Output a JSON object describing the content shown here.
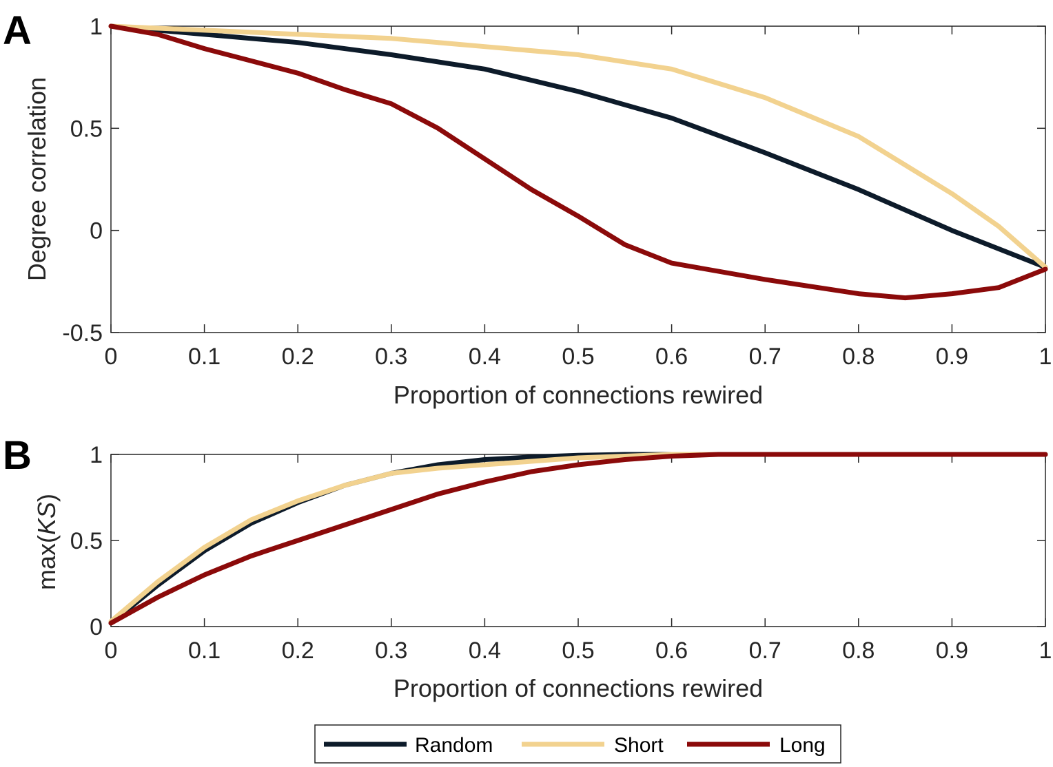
{
  "legend": {
    "items": [
      {
        "label": "Random",
        "color": "#0d1b2a"
      },
      {
        "label": "Short",
        "color": "#f2d28f"
      },
      {
        "label": "Long",
        "color": "#8b0a0a"
      }
    ]
  },
  "chart_data": [
    {
      "panel": "A",
      "type": "line",
      "xlabel": "Proportion of connections rewired",
      "ylabel": "Degree correlation",
      "xlim": [
        0,
        1
      ],
      "ylim": [
        -0.5,
        1
      ],
      "xticks": [
        0,
        0.1,
        0.2,
        0.3,
        0.4,
        0.5,
        0.6,
        0.7,
        0.8,
        0.9,
        1
      ],
      "xtick_labels": [
        "0",
        "0.1",
        "0.2",
        "0.3",
        "0.4",
        "0.5",
        "0.6",
        "0.7",
        "0.8",
        "0.9",
        "1"
      ],
      "yticks": [
        -0.5,
        0,
        0.5,
        1
      ],
      "ytick_labels": [
        "-0.5",
        "0",
        "0.5",
        "1"
      ],
      "grid": false,
      "series": [
        {
          "name": "Random",
          "color": "#0d1b2a",
          "x": [
            0,
            0.1,
            0.2,
            0.3,
            0.4,
            0.5,
            0.6,
            0.7,
            0.8,
            0.9,
            1
          ],
          "y": [
            1.0,
            0.96,
            0.92,
            0.86,
            0.79,
            0.68,
            0.55,
            0.38,
            0.2,
            0.0,
            -0.18
          ]
        },
        {
          "name": "Short",
          "color": "#f2d28f",
          "x": [
            0,
            0.1,
            0.2,
            0.3,
            0.4,
            0.5,
            0.6,
            0.7,
            0.8,
            0.9,
            0.95,
            1
          ],
          "y": [
            1.0,
            0.98,
            0.96,
            0.94,
            0.9,
            0.86,
            0.79,
            0.65,
            0.46,
            0.18,
            0.02,
            -0.18
          ]
        },
        {
          "name": "Long",
          "color": "#8b0a0a",
          "x": [
            0,
            0.05,
            0.1,
            0.15,
            0.2,
            0.25,
            0.3,
            0.35,
            0.4,
            0.45,
            0.5,
            0.55,
            0.6,
            0.7,
            0.8,
            0.85,
            0.9,
            0.95,
            1
          ],
          "y": [
            1.0,
            0.96,
            0.89,
            0.83,
            0.77,
            0.69,
            0.62,
            0.5,
            0.35,
            0.2,
            0.07,
            -0.07,
            -0.16,
            -0.24,
            -0.31,
            -0.33,
            -0.31,
            -0.28,
            -0.19
          ]
        }
      ]
    },
    {
      "panel": "B",
      "type": "line",
      "xlabel": "Proportion of connections rewired",
      "ylabel": "max(KS)",
      "xlim": [
        0,
        1
      ],
      "ylim": [
        0,
        1
      ],
      "xticks": [
        0,
        0.1,
        0.2,
        0.3,
        0.4,
        0.5,
        0.6,
        0.7,
        0.8,
        0.9,
        1
      ],
      "xtick_labels": [
        "0",
        "0.1",
        "0.2",
        "0.3",
        "0.4",
        "0.5",
        "0.6",
        "0.7",
        "0.8",
        "0.9",
        "1"
      ],
      "yticks": [
        0,
        0.5,
        1
      ],
      "ytick_labels": [
        "0",
        "0.5",
        "1"
      ],
      "grid": false,
      "series": [
        {
          "name": "Random",
          "color": "#0d1b2a",
          "x": [
            0,
            0.05,
            0.1,
            0.15,
            0.2,
            0.25,
            0.3,
            0.35,
            0.4,
            0.45,
            0.5,
            0.55,
            0.6,
            0.7,
            1
          ],
          "y": [
            0.02,
            0.24,
            0.44,
            0.6,
            0.72,
            0.82,
            0.89,
            0.94,
            0.97,
            0.985,
            0.995,
            1.0,
            1.0,
            1.0,
            1.0
          ]
        },
        {
          "name": "Short",
          "color": "#f2d28f",
          "x": [
            0,
            0.05,
            0.1,
            0.15,
            0.2,
            0.25,
            0.3,
            0.35,
            0.4,
            0.45,
            0.5,
            0.55,
            0.6,
            0.7,
            1
          ],
          "y": [
            0.03,
            0.26,
            0.46,
            0.62,
            0.73,
            0.82,
            0.89,
            0.92,
            0.94,
            0.96,
            0.98,
            0.99,
            1.0,
            1.0,
            1.0
          ]
        },
        {
          "name": "Long",
          "color": "#8b0a0a",
          "x": [
            0,
            0.05,
            0.1,
            0.15,
            0.2,
            0.25,
            0.3,
            0.35,
            0.4,
            0.45,
            0.5,
            0.55,
            0.6,
            0.65,
            0.7,
            1
          ],
          "y": [
            0.02,
            0.17,
            0.3,
            0.41,
            0.5,
            0.59,
            0.68,
            0.77,
            0.84,
            0.9,
            0.94,
            0.97,
            0.99,
            1.0,
            1.0,
            1.0
          ]
        }
      ]
    }
  ]
}
